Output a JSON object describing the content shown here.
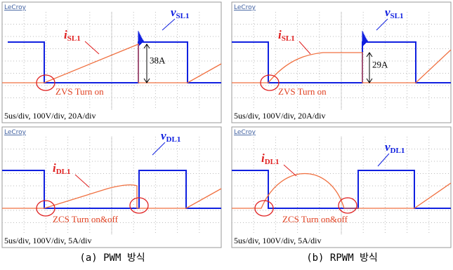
{
  "panels": [
    {
      "brand": "LeCroy",
      "current_label": {
        "symbol": "i",
        "subscript": "SL1"
      },
      "voltage_label": {
        "symbol": "v",
        "subscript": "SL1"
      },
      "peak_label": "38A",
      "annotation": "ZVS Turn on",
      "scale": "5us/div, 100V/div, 20A/div"
    },
    {
      "brand": "LeCroy",
      "current_label": {
        "symbol": "i",
        "subscript": "SL1"
      },
      "voltage_label": {
        "symbol": "v",
        "subscript": "SL1"
      },
      "peak_label": "29A",
      "annotation": "ZVS Turn on",
      "scale": "5us/div, 100V/div, 20A/div"
    },
    {
      "brand": "LeCroy",
      "current_label": {
        "symbol": "i",
        "subscript": "DL1"
      },
      "voltage_label": {
        "symbol": "v",
        "subscript": "DL1"
      },
      "annotation": "ZCS Turn on&off",
      "scale": "5us/div, 100V/div, 5A/div"
    },
    {
      "brand": "LeCroy",
      "current_label": {
        "symbol": "i",
        "subscript": "DL1"
      },
      "voltage_label": {
        "symbol": "v",
        "subscript": "DL1"
      },
      "annotation": "ZCS Turn on&off",
      "scale": "5us/div, 100V/div, 5A/div"
    }
  ],
  "captions": [
    "(a) PWM 방식",
    "(b) RPWM 방식"
  ]
}
